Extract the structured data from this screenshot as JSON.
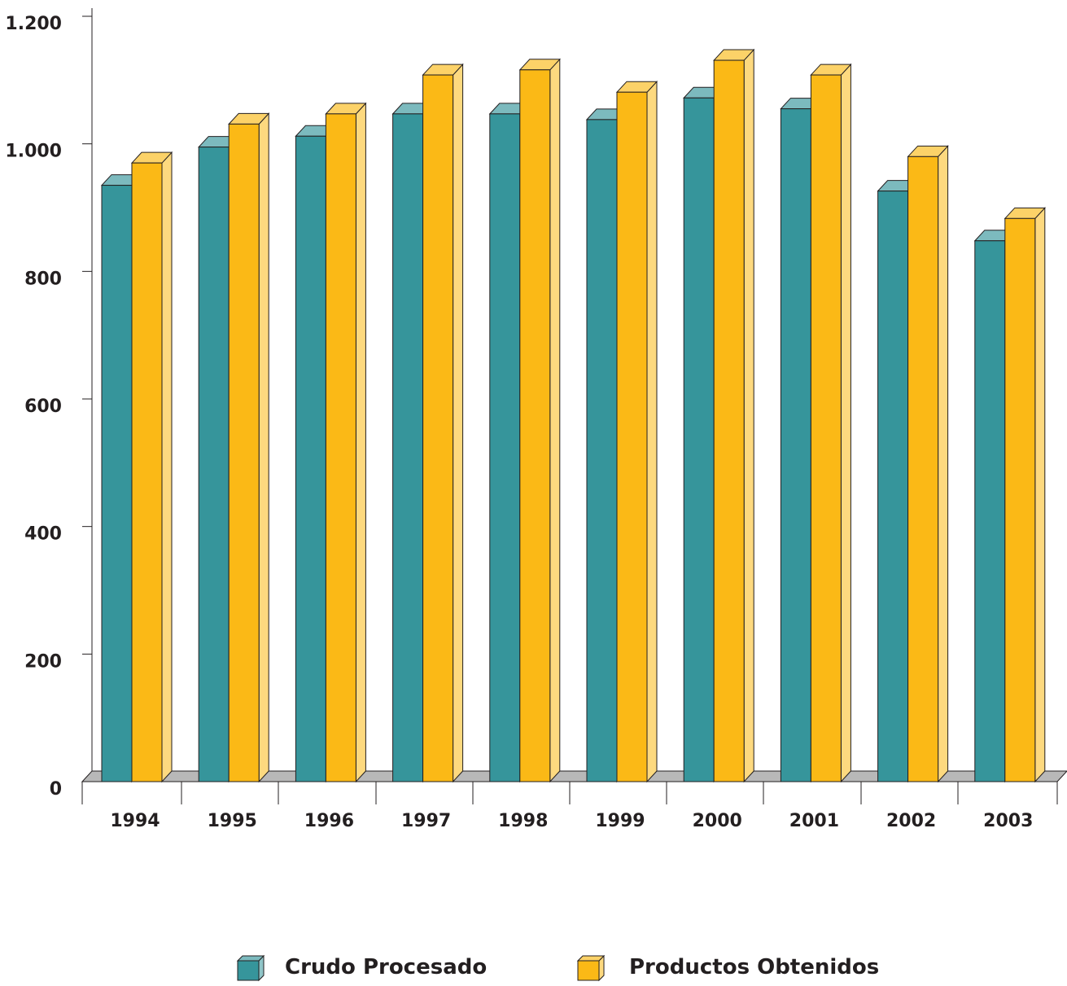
{
  "chart_data": {
    "type": "bar",
    "style": "3d-clustered",
    "title": "",
    "xlabel": "",
    "ylabel": "",
    "categories": [
      "1994",
      "1995",
      "1996",
      "1997",
      "1998",
      "1999",
      "2000",
      "2001",
      "2002",
      "2003"
    ],
    "series": [
      {
        "name": "Crudo Procesado",
        "color": "#36959b",
        "values": [
          935,
          995,
          1012,
          1047,
          1047,
          1038,
          1072,
          1055,
          926,
          848
        ]
      },
      {
        "name": "Productos Obtenidos",
        "color": "#fbb916",
        "values": [
          970,
          1031,
          1047,
          1108,
          1116,
          1081,
          1131,
          1108,
          980,
          883
        ]
      }
    ],
    "ylim": [
      0,
      1200
    ],
    "yticks": [
      0,
      200,
      400,
      600,
      800,
      1000,
      1200
    ],
    "ytick_labels": [
      "0",
      "200",
      "400",
      "600",
      "800",
      "1.000",
      "1.200"
    ],
    "grid": false,
    "legend_position": "bottom"
  }
}
